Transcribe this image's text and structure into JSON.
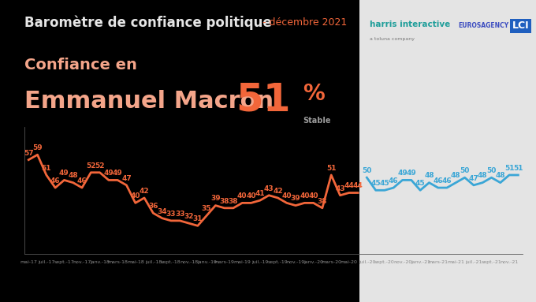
{
  "header": {
    "title": "Baromètre de confiance politique",
    "subtitle": "- décembre 2021",
    "headline": {
      "line1": "Confiance en",
      "line2": "Emmanuel Macron",
      "value": 51,
      "unit": "%",
      "trend": "Stable"
    },
    "logos": [
      "harris interactive",
      "a toluna company",
      "EUROSAGENCY",
      "LCI"
    ]
  },
  "chart_data": {
    "type": "line",
    "categories": [
      "mai-17",
      null,
      "juil.-17",
      null,
      "sept.-17",
      null,
      "nov.-17",
      null,
      "janv.-18",
      null,
      "mars-18",
      null,
      "mai-18",
      null,
      "juil.-18",
      null,
      "sept.-18",
      null,
      "nov.-18",
      null,
      "janv.-19",
      null,
      "mars-19",
      null,
      "mai-19",
      null,
      "juil.-19",
      null,
      "sept.-19",
      null,
      "nov.-19",
      null,
      "janv.-20",
      null,
      "mars-20",
      null,
      "mai-20",
      null,
      "juil.-20",
      null,
      "sept.-20",
      null,
      "nov.-20",
      null,
      "janv.-21",
      null,
      "mars-21",
      null,
      "mai-21",
      null,
      "juil.-21",
      null,
      "sept.-21",
      null,
      "nov.-21",
      null
    ],
    "series": [
      {
        "color": "#f2663a",
        "values": [
          57,
          59,
          51,
          46,
          49,
          48,
          46,
          52,
          52,
          49,
          49,
          47,
          40,
          42,
          36,
          34,
          33,
          33,
          32,
          31,
          35,
          39,
          38,
          38,
          40,
          40,
          41,
          43,
          42,
          40,
          39,
          40,
          40,
          38,
          51,
          43,
          44,
          44,
          null,
          null,
          null,
          null,
          null,
          null,
          null,
          null,
          null,
          null,
          null,
          null,
          null,
          null,
          null,
          null,
          null,
          null
        ]
      },
      {
        "color": "#3aa6d6",
        "values": [
          null,
          null,
          null,
          null,
          null,
          null,
          null,
          null,
          null,
          null,
          null,
          null,
          null,
          null,
          null,
          null,
          null,
          null,
          null,
          null,
          null,
          null,
          null,
          null,
          null,
          null,
          null,
          null,
          null,
          null,
          null,
          null,
          null,
          null,
          null,
          null,
          null,
          null,
          50,
          45,
          45,
          46,
          49,
          49,
          45,
          48,
          46,
          46,
          48,
          50,
          47,
          48,
          50,
          48,
          51,
          51
        ]
      }
    ],
    "ylim": [
      20,
      70
    ],
    "yticks": [],
    "data_labels": true,
    "tick_labels": "x"
  }
}
